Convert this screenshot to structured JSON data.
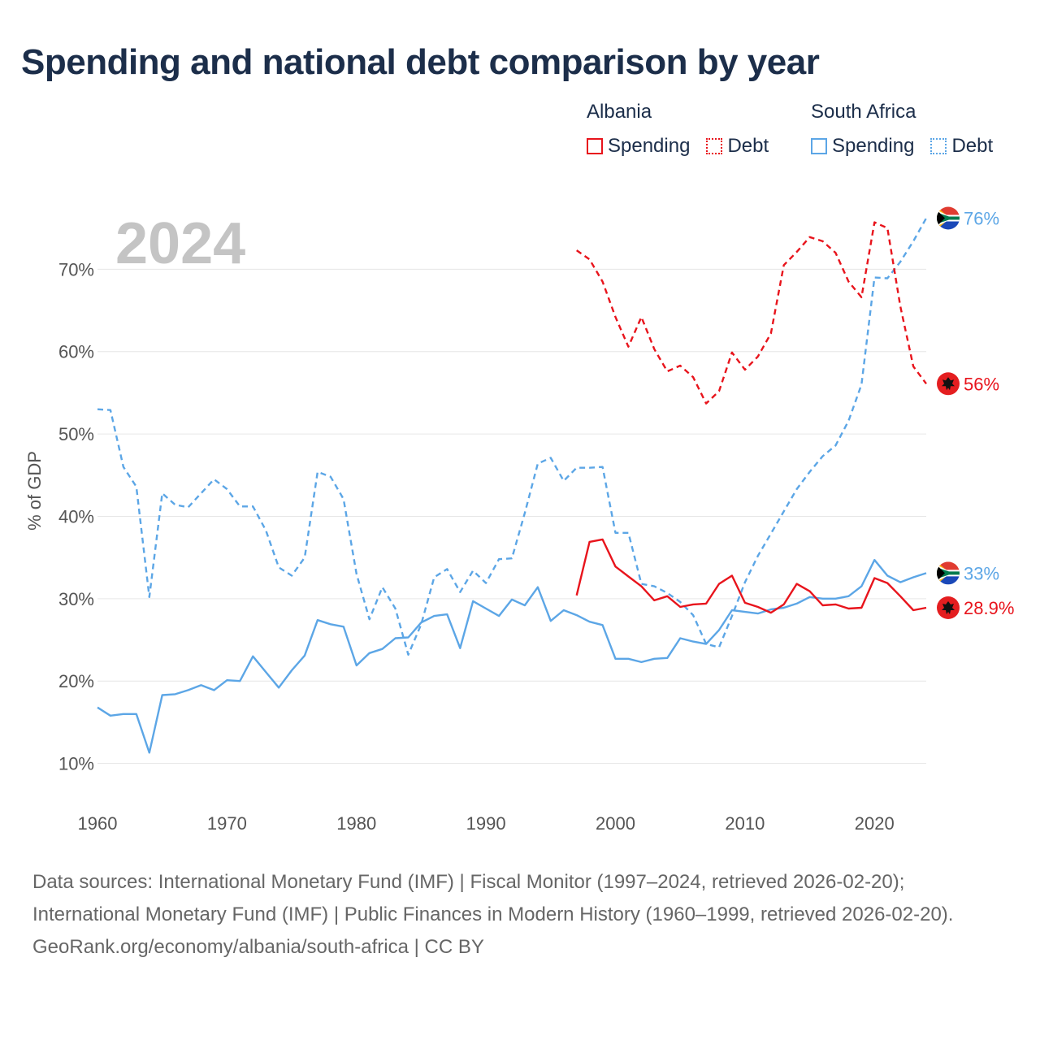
{
  "title": "Spending and national debt comparison by year",
  "legend": {
    "groups": [
      {
        "name": "Albania",
        "spending_label": "Spending",
        "debt_label": "Debt",
        "color": "#e8141c"
      },
      {
        "name": "South Africa",
        "spending_label": "Spending",
        "debt_label": "Debt",
        "color": "#5ca6e6"
      }
    ]
  },
  "chart_data": {
    "type": "line",
    "title": "Spending and national debt comparison by year",
    "year_label": "2024",
    "xlabel": "",
    "ylabel": "% of GDP",
    "xlim": [
      1960,
      2024
    ],
    "ylim": [
      7,
      80
    ],
    "x_ticks": [
      1960,
      1970,
      1980,
      1990,
      2000,
      2010,
      2020
    ],
    "y_ticks": [
      10,
      20,
      30,
      40,
      50,
      60,
      70
    ],
    "y_tick_labels": [
      "10%",
      "20%",
      "30%",
      "40%",
      "50%",
      "60%",
      "70%"
    ],
    "grid": true,
    "series": [
      {
        "name": "South Africa Debt",
        "country": "South Africa",
        "metric": "Debt",
        "color": "#5ca6e6",
        "style": "dashed",
        "end_label": "76%",
        "flag": "south-africa-flag-icon",
        "x": [
          1960,
          1961,
          1962,
          1963,
          1964,
          1965,
          1966,
          1967,
          1968,
          1969,
          1970,
          1971,
          1972,
          1973,
          1974,
          1975,
          1976,
          1977,
          1978,
          1979,
          1980,
          1981,
          1982,
          1983,
          1984,
          1985,
          1986,
          1987,
          1988,
          1989,
          1990,
          1991,
          1992,
          1993,
          1994,
          1995,
          1996,
          1997,
          1998,
          1999,
          2000,
          2001,
          2002,
          2003,
          2004,
          2005,
          2006,
          2007,
          2008,
          2009,
          2010,
          2011,
          2012,
          2013,
          2014,
          2015,
          2016,
          2017,
          2018,
          2019,
          2020,
          2021,
          2022,
          2023,
          2024
        ],
        "values": [
          53,
          52.9,
          46,
          43.6,
          30.2,
          42.8,
          41.4,
          41.1,
          42.8,
          44.5,
          43.3,
          41.2,
          41.2,
          38.3,
          33.8,
          32.8,
          35.0,
          45.4,
          44.8,
          42.1,
          33.0,
          27.5,
          31.4,
          28.8,
          23.2,
          26.9,
          32.6,
          33.6,
          30.8,
          33.4,
          31.9,
          34.8,
          34.9,
          40.4,
          46.4,
          47.1,
          44.3,
          45.9,
          45.9,
          46.0,
          38.0,
          38.0,
          31.8,
          31.5,
          30.7,
          29.6,
          28.0,
          24.5,
          24.1,
          27.9,
          32.0,
          35.2,
          37.9,
          40.6,
          43.3,
          45.4,
          47.3,
          48.6,
          51.6,
          56.0,
          69.0,
          68.9,
          70.9,
          73.4,
          76.2
        ]
      },
      {
        "name": "South Africa Spending",
        "country": "South Africa",
        "metric": "Spending",
        "color": "#5ca6e6",
        "style": "solid",
        "end_label": "33%",
        "flag": "south-africa-flag-icon",
        "x": [
          1960,
          1961,
          1962,
          1963,
          1964,
          1965,
          1966,
          1967,
          1968,
          1969,
          1970,
          1971,
          1972,
          1973,
          1974,
          1975,
          1976,
          1977,
          1978,
          1979,
          1980,
          1981,
          1982,
          1983,
          1984,
          1985,
          1986,
          1987,
          1988,
          1989,
          1990,
          1991,
          1992,
          1993,
          1994,
          1995,
          1996,
          1997,
          1998,
          1999,
          2000,
          2001,
          2002,
          2003,
          2004,
          2005,
          2006,
          2007,
          2008,
          2009,
          2010,
          2011,
          2012,
          2013,
          2014,
          2015,
          2016,
          2017,
          2018,
          2019,
          2020,
          2021,
          2022,
          2023,
          2024
        ],
        "values": [
          16.8,
          15.8,
          16,
          16,
          11.3,
          18.3,
          18.4,
          18.9,
          19.5,
          18.9,
          20.1,
          20.0,
          23.0,
          21.1,
          19.2,
          21.3,
          23.1,
          27.4,
          26.9,
          26.6,
          21.9,
          23.4,
          23.9,
          25.2,
          25.3,
          27.1,
          27.9,
          28.1,
          24.0,
          29.7,
          28.8,
          27.9,
          29.9,
          29.2,
          31.4,
          27.3,
          28.6,
          28.0,
          27.2,
          26.8,
          22.7,
          22.7,
          22.3,
          22.7,
          22.8,
          25.2,
          24.8,
          24.5,
          26.2,
          28.6,
          28.4,
          28.2,
          28.7,
          28.9,
          29.4,
          30.2,
          30.0,
          30.0,
          30.3,
          31.5,
          34.7,
          32.8,
          32.0,
          32.6,
          33.1
        ]
      },
      {
        "name": "Albania Debt",
        "country": "Albania",
        "metric": "Debt",
        "color": "#e8141c",
        "style": "dashed",
        "end_label": "56%",
        "flag": "albania-flag-icon",
        "x": [
          1997,
          1998,
          1999,
          2000,
          2001,
          2002,
          2003,
          2004,
          2005,
          2006,
          2007,
          2008,
          2009,
          2010,
          2011,
          2012,
          2013,
          2014,
          2015,
          2016,
          2017,
          2018,
          2019,
          2020,
          2021,
          2022,
          2023,
          2024
        ],
        "values": [
          72.3,
          71.2,
          68.5,
          64.2,
          60.6,
          64.2,
          60.3,
          57.6,
          58.3,
          56.9,
          53.7,
          55.2,
          59.9,
          57.8,
          59.4,
          62.2,
          70.5,
          72.1,
          73.9,
          73.4,
          72.0,
          68.5,
          66.6,
          75.7,
          75.0,
          65.5,
          58.2,
          56.1
        ]
      },
      {
        "name": "Albania Spending",
        "country": "Albania",
        "metric": "Spending",
        "color": "#e8141c",
        "style": "solid",
        "end_label": "28.9%",
        "flag": "albania-flag-icon",
        "x": [
          1997,
          1998,
          1999,
          2000,
          2001,
          2002,
          2003,
          2004,
          2005,
          2006,
          2007,
          2008,
          2009,
          2010,
          2011,
          2012,
          2013,
          2014,
          2015,
          2016,
          2017,
          2018,
          2019,
          2020,
          2021,
          2022,
          2023,
          2024
        ],
        "values": [
          30.4,
          36.9,
          37.2,
          33.9,
          32.7,
          31.5,
          29.8,
          30.3,
          29.0,
          29.3,
          29.4,
          31.8,
          32.8,
          29.5,
          29.0,
          28.3,
          29.3,
          31.8,
          30.9,
          29.2,
          29.3,
          28.8,
          28.9,
          32.5,
          31.9,
          30.3,
          28.6,
          28.9
        ]
      }
    ]
  },
  "sources": {
    "line1": "Data sources: International Monetary Fund (IMF) | Fiscal Monitor (1997–2024, retrieved 2026-02-20); International Monetary Fund (IMF) | Public Finances in Modern History (1960–1999, retrieved 2026-02-20).",
    "line2": "GeoRank.org/economy/albania/south-africa | CC BY"
  }
}
